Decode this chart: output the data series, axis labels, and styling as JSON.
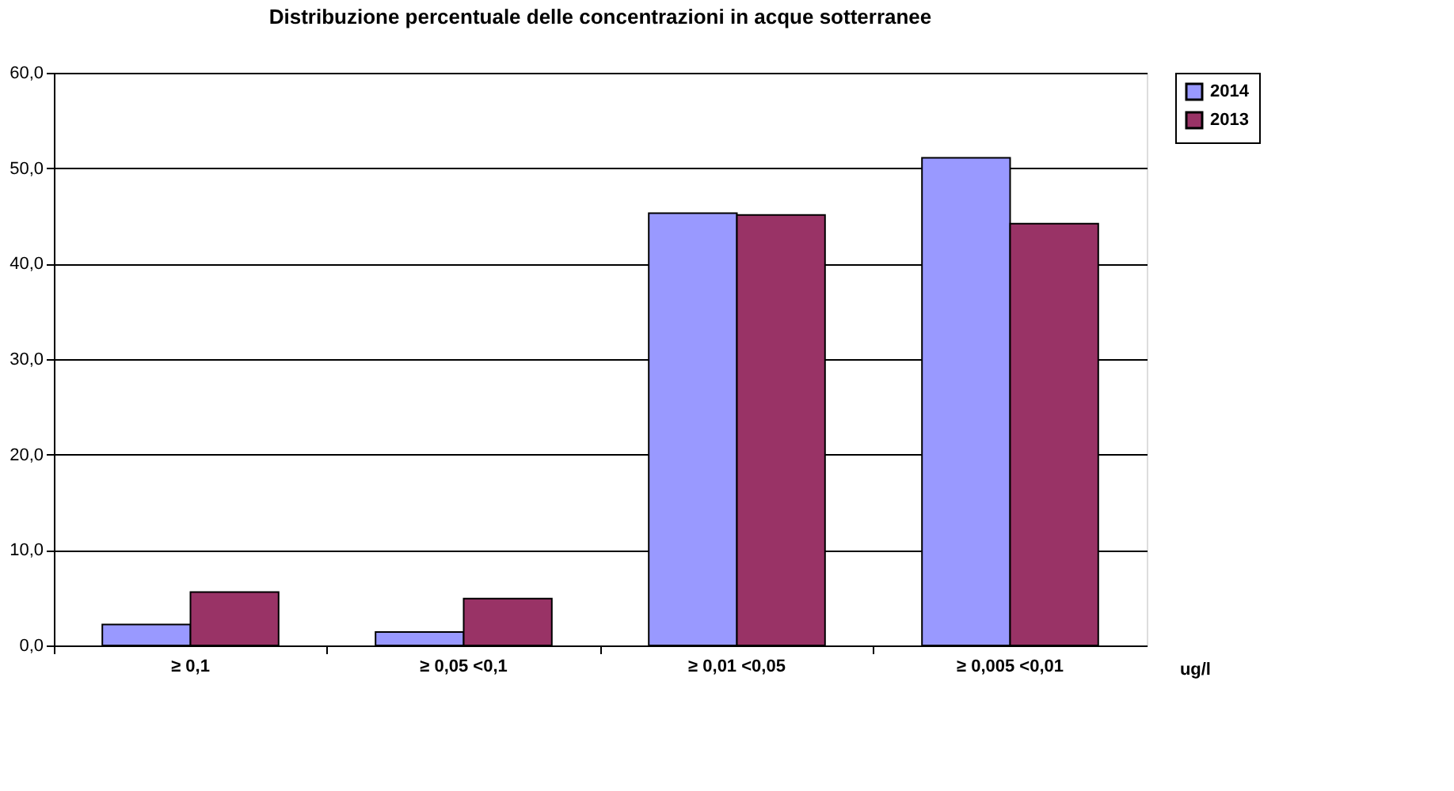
{
  "chart_data": {
    "type": "bar",
    "title": "Distribuzione percentuale delle concentrazioni in acque sotterranee",
    "categories": [
      "≥ 0,1",
      "≥ 0,05 <0,1",
      "≥ 0,01 <0,05",
      "≥ 0,005 <0,01"
    ],
    "xlabel": "ug/l",
    "series": [
      {
        "name": "2014",
        "color": "#9999ff",
        "values": [
          2.2,
          1.4,
          45.3,
          51.1
        ]
      },
      {
        "name": "2013",
        "color": "#993366",
        "values": [
          5.6,
          4.9,
          45.1,
          44.2
        ]
      }
    ],
    "ylim": [
      0,
      60
    ],
    "yticks": [
      {
        "value": 0,
        "label": "0,0"
      },
      {
        "value": 10,
        "label": "10,0"
      },
      {
        "value": 20,
        "label": "20,0"
      },
      {
        "value": 30,
        "label": "30,0"
      },
      {
        "value": 40,
        "label": "40,0"
      },
      {
        "value": 50,
        "label": "50,0"
      },
      {
        "value": 60,
        "label": "60,0"
      }
    ],
    "grid": "y",
    "legend": "right"
  }
}
